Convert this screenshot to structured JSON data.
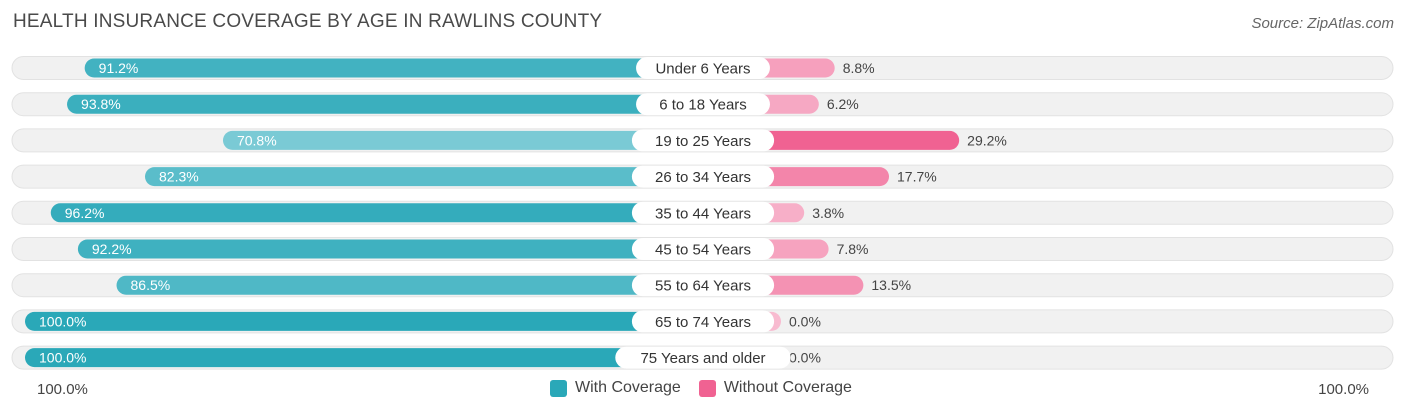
{
  "title": "HEALTH INSURANCE COVERAGE BY AGE IN RAWLINS COUNTY",
  "source": "Source: ZipAtlas.com",
  "colors": {
    "with_strong": "#2aa8b8",
    "with_light": "#7ccbd6",
    "without_strong": "#f06292",
    "without_light": "#f8bbd0",
    "track": "#f1f1f1"
  },
  "chart_data": {
    "type": "bar",
    "orientation": "diverging-horizontal",
    "title": "HEALTH INSURANCE COVERAGE BY AGE IN RAWLINS COUNTY",
    "categories": [
      "Under 6 Years",
      "6 to 18 Years",
      "19 to 25 Years",
      "26 to 34 Years",
      "35 to 44 Years",
      "45 to 54 Years",
      "55 to 64 Years",
      "65 to 74 Years",
      "75 Years and older"
    ],
    "series": [
      {
        "name": "With Coverage",
        "values": [
          91.2,
          93.8,
          70.8,
          82.3,
          96.2,
          92.2,
          86.5,
          100.0,
          100.0
        ],
        "labels": [
          "91.2%",
          "93.8%",
          "70.8%",
          "82.3%",
          "96.2%",
          "92.2%",
          "86.5%",
          "100.0%",
          "100.0%"
        ]
      },
      {
        "name": "Without Coverage",
        "values": [
          8.8,
          6.2,
          29.2,
          17.7,
          3.8,
          7.8,
          13.5,
          0.0,
          0.0
        ],
        "labels": [
          "8.8%",
          "6.2%",
          "29.2%",
          "17.7%",
          "3.8%",
          "7.8%",
          "13.5%",
          "0.0%",
          "0.0%"
        ]
      }
    ],
    "xlim": [
      -100,
      100
    ],
    "axis_left_label": "100.0%",
    "axis_right_label": "100.0%",
    "legend_position": "bottom-center"
  },
  "legend": {
    "with_label": "With Coverage",
    "without_label": "Without Coverage"
  }
}
